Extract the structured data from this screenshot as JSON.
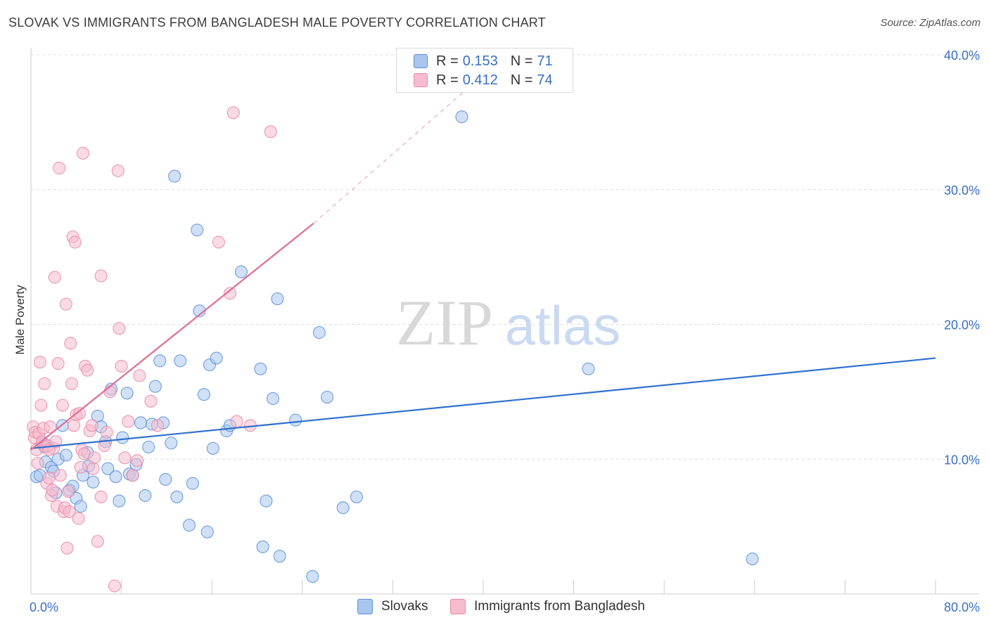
{
  "title": "SLOVAK VS IMMIGRANTS FROM BANGLADESH MALE POVERTY CORRELATION CHART",
  "source": "Source: ZipAtlas.com",
  "watermark": {
    "zip": "ZIP",
    "atlas": "atlas"
  },
  "legend": {
    "rows": [
      {
        "r_label": "R = ",
        "r_value": "0.153",
        "n_label": "N = ",
        "n_value": "71"
      },
      {
        "r_label": "R = ",
        "r_value": "0.412",
        "n_label": "N = ",
        "n_value": "74"
      }
    ]
  },
  "bottom_legend": [
    "Slovaks",
    "Immigrants from Bangladesh"
  ],
  "colors": {
    "blue_fill": "#a9c6ef",
    "blue_stroke": "#5b8fd9",
    "blue_line": "#2f6fcf",
    "pink_fill": "#f6bccd",
    "pink_stroke": "#e88aa8",
    "pink_line": "#e06b95",
    "tick_text": "#3a6fc4",
    "grid": "#dcdcdc"
  },
  "chart_data": {
    "type": "scatter",
    "title": "SLOVAK VS IMMIGRANTS FROM BANGLADESH MALE POVERTY CORRELATION CHART",
    "xlabel": "",
    "ylabel": "Male Poverty",
    "xlim": [
      0,
      80
    ],
    "ylim": [
      0,
      40
    ],
    "x_tick_labels": [
      "0.0%",
      "80.0%"
    ],
    "y_ticks": [
      10,
      20,
      30,
      40
    ],
    "y_tick_labels": [
      "10.0%",
      "20.0%",
      "30.0%",
      "40.0%"
    ],
    "grid": "horizontal dashed",
    "series": [
      {
        "name": "Slovaks",
        "R": 0.153,
        "N": 71,
        "trend": {
          "x": [
            0,
            80
          ],
          "y": [
            10.8,
            17.5
          ],
          "style": "solid"
        },
        "points": [
          [
            0.5,
            8.7
          ],
          [
            0.8,
            8.8
          ],
          [
            1.0,
            11.2
          ],
          [
            1.3,
            9.8
          ],
          [
            1.5,
            11.0
          ],
          [
            1.8,
            9.4
          ],
          [
            2.0,
            9.1
          ],
          [
            2.2,
            7.5
          ],
          [
            2.4,
            10.0
          ],
          [
            2.8,
            12.5
          ],
          [
            3.1,
            10.3
          ],
          [
            3.4,
            7.7
          ],
          [
            3.7,
            8.0
          ],
          [
            4.0,
            7.1
          ],
          [
            4.4,
            6.5
          ],
          [
            4.6,
            8.8
          ],
          [
            5.0,
            10.5
          ],
          [
            5.1,
            9.5
          ],
          [
            5.5,
            8.3
          ],
          [
            5.9,
            13.2
          ],
          [
            6.2,
            12.4
          ],
          [
            6.6,
            11.3
          ],
          [
            6.8,
            9.3
          ],
          [
            7.1,
            15.2
          ],
          [
            7.5,
            8.7
          ],
          [
            7.8,
            6.9
          ],
          [
            8.1,
            11.6
          ],
          [
            8.5,
            14.9
          ],
          [
            8.7,
            8.9
          ],
          [
            9.0,
            8.8
          ],
          [
            9.3,
            9.6
          ],
          [
            9.7,
            12.7
          ],
          [
            10.1,
            7.3
          ],
          [
            10.4,
            10.9
          ],
          [
            10.7,
            12.6
          ],
          [
            11.0,
            15.4
          ],
          [
            11.4,
            17.3
          ],
          [
            11.7,
            12.7
          ],
          [
            11.9,
            8.5
          ],
          [
            12.4,
            11.2
          ],
          [
            12.7,
            31.0
          ],
          [
            12.9,
            7.2
          ],
          [
            13.2,
            17.3
          ],
          [
            14.0,
            5.1
          ],
          [
            14.3,
            8.2
          ],
          [
            14.7,
            27.0
          ],
          [
            14.9,
            21.0
          ],
          [
            15.3,
            14.8
          ],
          [
            15.6,
            4.6
          ],
          [
            15.8,
            17.0
          ],
          [
            16.1,
            10.8
          ],
          [
            16.4,
            17.5
          ],
          [
            17.3,
            12.1
          ],
          [
            17.6,
            12.5
          ],
          [
            18.6,
            23.9
          ],
          [
            20.3,
            16.7
          ],
          [
            20.5,
            3.5
          ],
          [
            20.8,
            6.9
          ],
          [
            21.4,
            14.5
          ],
          [
            21.8,
            21.9
          ],
          [
            22.0,
            2.8
          ],
          [
            23.4,
            12.9
          ],
          [
            24.9,
            1.3
          ],
          [
            25.5,
            19.4
          ],
          [
            26.2,
            14.6
          ],
          [
            27.6,
            6.4
          ],
          [
            28.8,
            7.2
          ],
          [
            38.1,
            35.4
          ],
          [
            49.3,
            16.7
          ],
          [
            63.8,
            2.6
          ],
          [
            1.2,
            10.9
          ]
        ]
      },
      {
        "name": "Immigrants from Bangladesh",
        "R": 0.412,
        "N": 74,
        "trend": {
          "x": [
            0,
            25
          ],
          "y": [
            10.7,
            27.5
          ],
          "style": "solid",
          "dashed_extension": {
            "x": [
              25,
              42
            ],
            "y": [
              27.5,
              40
            ]
          }
        },
        "points": [
          [
            0.2,
            12.4
          ],
          [
            0.3,
            11.6
          ],
          [
            0.4,
            12.0
          ],
          [
            0.5,
            10.7
          ],
          [
            0.6,
            9.7
          ],
          [
            0.7,
            11.9
          ],
          [
            0.8,
            17.2
          ],
          [
            0.9,
            14.0
          ],
          [
            1.0,
            11.3
          ],
          [
            1.1,
            12.3
          ],
          [
            1.2,
            15.6
          ],
          [
            1.3,
            10.9
          ],
          [
            1.4,
            8.2
          ],
          [
            1.5,
            11.0
          ],
          [
            1.6,
            8.6
          ],
          [
            1.7,
            12.4
          ],
          [
            1.8,
            7.3
          ],
          [
            1.9,
            7.7
          ],
          [
            2.0,
            10.8
          ],
          [
            2.1,
            23.5
          ],
          [
            2.2,
            11.3
          ],
          [
            2.3,
            6.5
          ],
          [
            2.4,
            17.1
          ],
          [
            2.5,
            31.6
          ],
          [
            2.6,
            8.8
          ],
          [
            2.8,
            14.0
          ],
          [
            2.9,
            6.1
          ],
          [
            3.0,
            6.4
          ],
          [
            3.1,
            21.5
          ],
          [
            3.2,
            3.4
          ],
          [
            3.3,
            7.6
          ],
          [
            3.4,
            6.1
          ],
          [
            3.5,
            18.6
          ],
          [
            3.6,
            15.6
          ],
          [
            3.7,
            26.5
          ],
          [
            3.8,
            12.5
          ],
          [
            3.9,
            26.1
          ],
          [
            4.0,
            13.3
          ],
          [
            4.2,
            5.6
          ],
          [
            4.3,
            13.4
          ],
          [
            4.4,
            9.4
          ],
          [
            4.5,
            10.7
          ],
          [
            4.6,
            32.7
          ],
          [
            4.7,
            10.4
          ],
          [
            4.8,
            16.9
          ],
          [
            5.0,
            16.6
          ],
          [
            5.2,
            12.1
          ],
          [
            5.4,
            12.5
          ],
          [
            5.5,
            9.3
          ],
          [
            5.6,
            10.1
          ],
          [
            5.9,
            3.9
          ],
          [
            6.2,
            23.6
          ],
          [
            6.5,
            11.0
          ],
          [
            6.7,
            12.0
          ],
          [
            7.0,
            15.0
          ],
          [
            7.4,
            0.6
          ],
          [
            7.7,
            31.4
          ],
          [
            7.8,
            19.7
          ],
          [
            8.0,
            16.9
          ],
          [
            8.3,
            10.1
          ],
          [
            8.6,
            12.8
          ],
          [
            9.0,
            8.8
          ],
          [
            9.4,
            9.9
          ],
          [
            9.6,
            16.2
          ],
          [
            10.6,
            14.3
          ],
          [
            11.2,
            12.5
          ],
          [
            16.6,
            26.1
          ],
          [
            17.6,
            22.3
          ],
          [
            18.2,
            12.8
          ],
          [
            19.4,
            12.5
          ],
          [
            17.9,
            35.7
          ],
          [
            21.2,
            34.3
          ],
          [
            6.2,
            7.2
          ],
          [
            1.6,
            10.7
          ]
        ]
      }
    ]
  }
}
